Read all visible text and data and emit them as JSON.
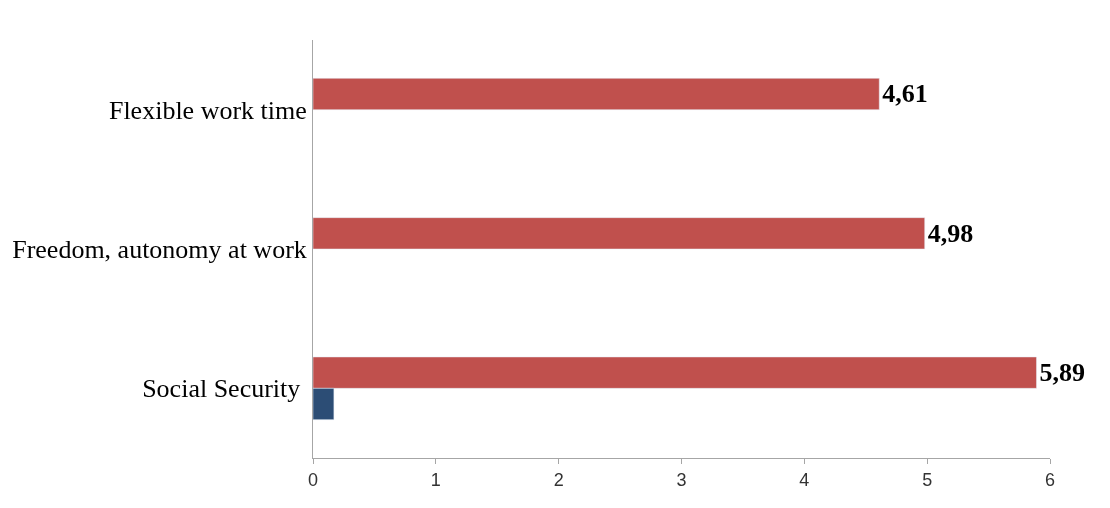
{
  "chart_data": {
    "type": "bar",
    "orientation": "horizontal",
    "categories": [
      "Flexible work time",
      "Freedom, autonomy at work",
      "Social Security "
    ],
    "series": [
      {
        "color": "#c0504d",
        "values": [
          4.61,
          4.98,
          5.89
        ],
        "value_labels": [
          "4,61",
          "4,98",
          "5,89"
        ]
      },
      {
        "color": "#2c4d75",
        "values": [
          null,
          null,
          0.17
        ]
      }
    ],
    "xlim": [
      0,
      6
    ],
    "xticks": [
      0,
      1,
      2,
      3,
      4,
      5,
      6
    ],
    "legend": false
  }
}
